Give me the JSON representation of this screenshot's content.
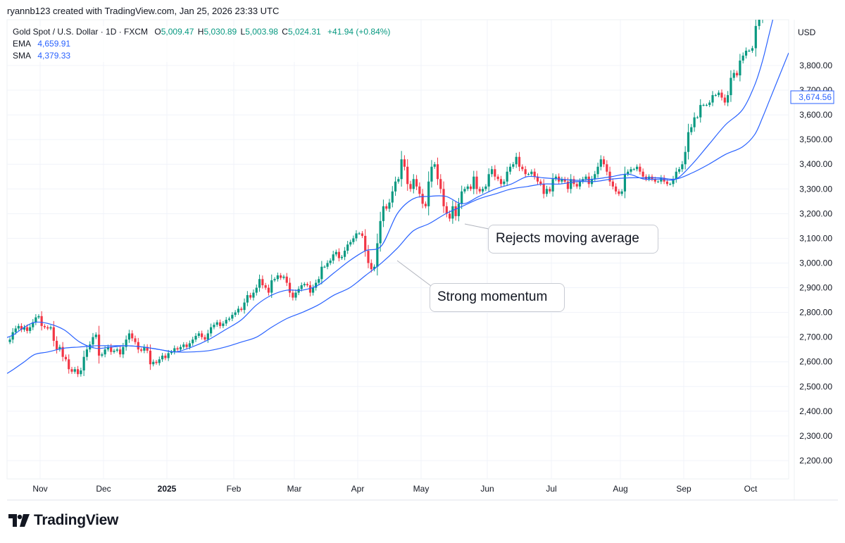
{
  "credit": "ryannb123 created with TradingView.com, Jan 25, 2026 23:33 UTC",
  "legend": {
    "symbol": "Gold Spot / U.S. Dollar · 1D · FXCM",
    "o_label": "O",
    "o": "5,009.47",
    "h_label": "H",
    "h": "5,030.89",
    "l_label": "L",
    "l": "5,003.98",
    "c_label": "C",
    "c": "5,024.31",
    "change": "+41.94 (+0.84%)",
    "ema_label": "EMA",
    "ema": "4,659.91",
    "sma_label": "SMA",
    "sma": "4,379.33"
  },
  "annotations": {
    "rejects": "Rejects moving average",
    "momentum": "Strong momentum"
  },
  "logo": "TradingView",
  "chart_data": {
    "type": "candlestick",
    "currency": "USD",
    "price_tag": "3,674.56",
    "ylim": [
      2140,
      3985
    ],
    "yticks": [
      "2,200.00",
      "2,300.00",
      "2,400.00",
      "2,500.00",
      "2,600.00",
      "2,700.00",
      "2,800.00",
      "2,900.00",
      "3,000.00",
      "3,100.00",
      "3,200.00",
      "3,300.00",
      "3,400.00",
      "3,500.00",
      "3,600.00",
      "3,700.00",
      "3,800.00"
    ],
    "ytick_values": [
      2200,
      2300,
      2400,
      2500,
      2600,
      2700,
      2800,
      2900,
      3000,
      3100,
      3200,
      3300,
      3400,
      3500,
      3600,
      3700,
      3800
    ],
    "grid": true,
    "colors": {
      "up": "#089981",
      "down": "#f23645",
      "ema": "#2962ff",
      "sma": "#2962ff",
      "tag": "#2962ff"
    },
    "months": [
      {
        "label": "",
        "closes": [
          2690,
          2720,
          2735,
          2745,
          2730,
          2740,
          2725,
          2740,
          2760,
          2780,
          2785
        ],
        "ema": [
          2710,
          2740,
          2760
        ],
        "sma": [
          2570,
          2600,
          2630
        ]
      },
      {
        "label": "Nov",
        "closes": [
          2745,
          2740,
          2735,
          2740,
          2685,
          2650,
          2660,
          2620,
          2610,
          2570,
          2560,
          2570,
          2550,
          2565,
          2620,
          2650,
          2670,
          2700,
          2710,
          2625,
          2630
        ],
        "ema": [
          2755,
          2730,
          2680,
          2655
        ],
        "sma": [
          2640,
          2655,
          2660,
          2665
        ]
      },
      {
        "label": "Dec",
        "closes": [
          2650,
          2660,
          2640,
          2645,
          2650,
          2630,
          2660,
          2690,
          2715,
          2695,
          2680,
          2650,
          2645,
          2660,
          2645,
          2590,
          2600,
          2595,
          2610,
          2625,
          2615
        ],
        "ema": [
          2660,
          2665,
          2660,
          2650
        ],
        "sma": [
          2665,
          2665,
          2660,
          2650
        ]
      },
      {
        "label": "2025",
        "closes": [
          2635,
          2640,
          2655,
          2650,
          2660,
          2670,
          2660,
          2675,
          2690,
          2705,
          2715,
          2700,
          2690,
          2715,
          2740,
          2750,
          2760,
          2745,
          2755,
          2770,
          2775,
          2790
        ],
        "ema": [
          2640,
          2660,
          2690,
          2730
        ],
        "sma": [
          2640,
          2640,
          2645,
          2660
        ]
      },
      {
        "label": "Feb",
        "closes": [
          2800,
          2815,
          2810,
          2840,
          2870,
          2860,
          2880,
          2900,
          2935,
          2910,
          2900,
          2880,
          2930,
          2935,
          2950,
          2940,
          2945,
          2920,
          2880,
          2860
        ],
        "ema": [
          2770,
          2830,
          2870,
          2890
        ],
        "sma": [
          2680,
          2700,
          2740,
          2775
        ]
      },
      {
        "label": "Mar",
        "closes": [
          2880,
          2895,
          2910,
          2915,
          2910,
          2880,
          2900,
          2920,
          2935,
          2985,
          2985,
          3000,
          3010,
          3035,
          3045,
          3020,
          3025,
          3050,
          3075,
          3085,
          3100,
          3120
        ],
        "ema": [
          2890,
          2910,
          2960,
          3010
        ],
        "sma": [
          2800,
          2830,
          2870,
          2900
        ]
      },
      {
        "label": "Apr",
        "closes": [
          3120,
          3110,
          3050,
          3000,
          2975,
          2985,
          3080,
          3170,
          3230,
          3220,
          3245,
          3290,
          3330,
          3340,
          3420,
          3390,
          3320,
          3300,
          3340,
          3310,
          3280
        ],
        "ema": [
          3050,
          3070,
          3200,
          3260
        ],
        "sma": [
          2950,
          3000,
          3060,
          3130
        ]
      },
      {
        "label": "May",
        "closes": [
          3240,
          3230,
          3330,
          3390,
          3400,
          3340,
          3300,
          3230,
          3200,
          3180,
          3230,
          3190,
          3240,
          3290,
          3300,
          3310,
          3300,
          3350,
          3300,
          3290,
          3300,
          3310
        ],
        "ema": [
          3270,
          3270,
          3240,
          3270
        ],
        "sma": [
          3160,
          3200,
          3230,
          3260
        ]
      },
      {
        "label": "Jun",
        "closes": [
          3360,
          3380,
          3350,
          3340,
          3320,
          3330,
          3370,
          3390,
          3400,
          3430,
          3390,
          3380,
          3360,
          3360,
          3370,
          3350,
          3330,
          3320,
          3280,
          3300,
          3290
        ],
        "ema": [
          3300,
          3320,
          3350,
          3345
        ],
        "sma": [
          3280,
          3300,
          3310,
          3320
        ]
      },
      {
        "label": "Jul",
        "closes": [
          3340,
          3350,
          3330,
          3340,
          3330,
          3300,
          3340,
          3320,
          3310,
          3330,
          3340,
          3350,
          3320,
          3340,
          3360,
          3390,
          3420,
          3400,
          3370,
          3330,
          3310,
          3290,
          3280
        ],
        "ema": [
          3340,
          3335,
          3340,
          3350
        ],
        "sma": [
          3320,
          3330,
          3330,
          3340
        ]
      },
      {
        "label": "Aug",
        "closes": [
          3290,
          3360,
          3370,
          3380,
          3380,
          3390,
          3370,
          3350,
          3340,
          3350,
          3340,
          3330,
          3330,
          3345,
          3330,
          3320,
          3320,
          3340,
          3370,
          3380,
          3400
        ],
        "ema": [
          3360,
          3340,
          3340,
          3340
        ],
        "sma": [
          3345,
          3345,
          3345,
          3340
        ]
      },
      {
        "label": "Sep",
        "closes": [
          3450,
          3530,
          3550,
          3590,
          3590,
          3640,
          3640,
          3640,
          3650,
          3680,
          3680,
          3690,
          3670,
          3650,
          3680,
          3750,
          3770,
          3760,
          3820,
          3840,
          3860,
          3860
        ],
        "ema": [
          3400,
          3480,
          3560,
          3620
        ],
        "sma": [
          3365,
          3400,
          3440,
          3470
        ]
      },
      {
        "label": "Oct",
        "closes": [
          3870,
          3960,
          3990,
          4030,
          4040,
          4020,
          4040
        ],
        "ema": [
          3720,
          3820,
          3950
        ],
        "sma": [
          3520,
          3590,
          3670
        ]
      }
    ]
  }
}
